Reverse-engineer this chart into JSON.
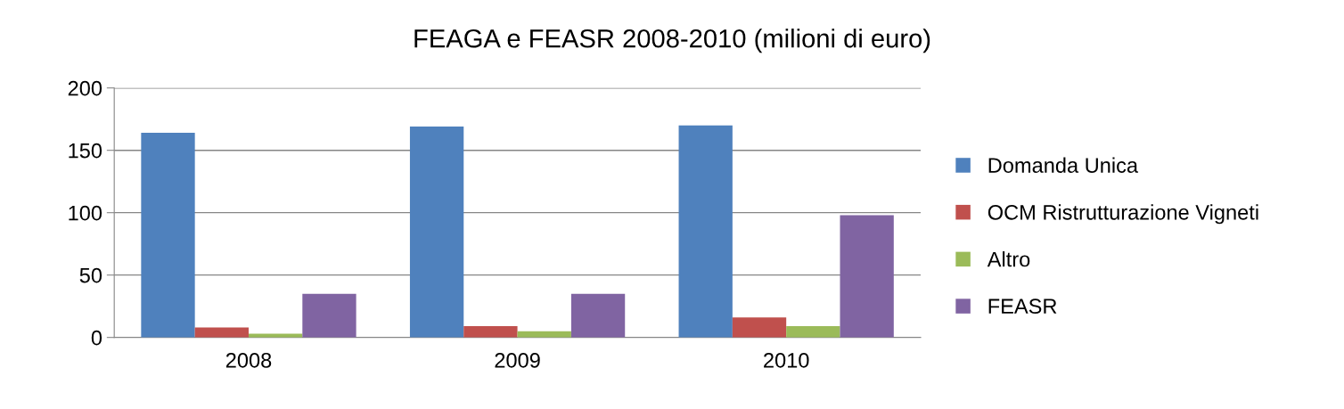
{
  "chart_data": {
    "type": "bar",
    "title": "FEAGA e FEASR 2008-2010 (milioni di euro)",
    "categories": [
      "2008",
      "2009",
      "2010"
    ],
    "series": [
      {
        "name": "Domanda Unica",
        "color": "#4f81bd",
        "values": [
          164,
          169,
          170
        ]
      },
      {
        "name": "OCM Ristrutturazione Vigneti",
        "color": "#c0504d",
        "values": [
          8,
          9,
          16
        ]
      },
      {
        "name": "Altro",
        "color": "#9bbb59",
        "values": [
          3,
          5,
          9
        ]
      },
      {
        "name": "FEASR",
        "color": "#8064a2",
        "values": [
          35,
          35,
          98
        ]
      }
    ],
    "ylim": [
      0,
      200
    ],
    "yticks": [
      0,
      50,
      100,
      150,
      200
    ],
    "grid": "y",
    "legend": "right"
  }
}
